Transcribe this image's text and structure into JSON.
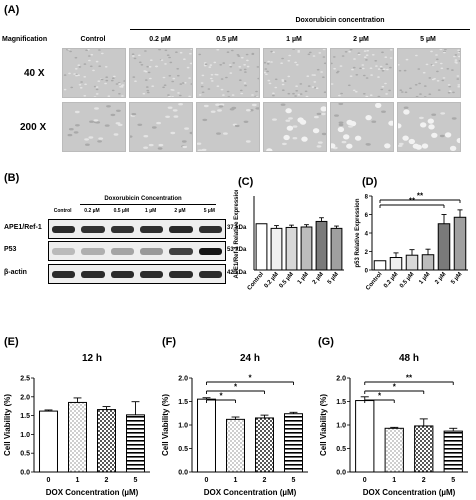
{
  "panelA": {
    "label": "(A)",
    "treatment_header": "Doxorubicin concentration",
    "magnification_label": "Magnification",
    "columns": [
      "Control",
      "0.2 µM",
      "0.5 µM",
      "1 µM",
      "2 µM",
      "5 µM"
    ],
    "rows": [
      "40 X",
      "200 X"
    ]
  },
  "panelB": {
    "label": "(B)",
    "treatment_header": "Doxorubicin Concentration",
    "lanes": [
      "Control",
      "0.2 µM",
      "0.5 µM",
      "1 µM",
      "2 µM",
      "5 µM"
    ],
    "proteins": [
      {
        "name": "APE1/Ref-1",
        "size": "37 kDa",
        "intensity": [
          0.85,
          0.82,
          0.82,
          0.83,
          0.86,
          0.83
        ]
      },
      {
        "name": "P53",
        "size": "53 kDa",
        "intensity": [
          0.2,
          0.25,
          0.3,
          0.35,
          0.75,
          0.95
        ]
      },
      {
        "name": "β-actin",
        "size": "42 kDa",
        "intensity": [
          0.85,
          0.85,
          0.85,
          0.85,
          0.85,
          0.85
        ]
      }
    ]
  },
  "chart_data": [
    {
      "id": "C",
      "label": "(C)",
      "type": "bar",
      "ylabel": "APE1/Ref-1 Relative Expression",
      "categories": [
        "Control",
        "0.2 µM",
        "0.5 µM",
        "1 µM",
        "2 µM",
        "5 µM"
      ],
      "values": [
        1.0,
        0.9,
        0.92,
        0.93,
        1.05,
        0.9
      ],
      "errors": [
        0.0,
        0.06,
        0.05,
        0.05,
        0.08,
        0.05
      ],
      "ylim": [
        0,
        1.6
      ],
      "yticks": []
    },
    {
      "id": "D",
      "label": "(D)",
      "type": "bar",
      "ylabel": "p53 Relative Expression",
      "categories": [
        "Control",
        "0.2 µM",
        "0.5 µM",
        "1 µM",
        "2 µM",
        "5 µM"
      ],
      "values": [
        1.0,
        1.35,
        1.6,
        1.65,
        5.0,
        5.7
      ],
      "errors": [
        0.0,
        0.5,
        0.6,
        0.6,
        1.0,
        0.8
      ],
      "ylim": [
        0,
        8
      ],
      "yticks": [
        "0",
        "2",
        "4",
        "6",
        "8"
      ],
      "significance": [
        {
          "from": 0,
          "to": 5,
          "text": "**"
        },
        {
          "from": 0,
          "to": 4,
          "text": "**"
        }
      ]
    },
    {
      "id": "E",
      "label": "(E)",
      "type": "bar",
      "title": "12 h",
      "xlabel": "DOX Concentration (µM)",
      "ylabel": "Cell Viability (%)",
      "categories": [
        "0",
        "1",
        "2",
        "5"
      ],
      "values": [
        1.62,
        1.85,
        1.66,
        1.52
      ],
      "errors": [
        0.03,
        0.12,
        0.08,
        0.35
      ],
      "ylim": [
        0,
        2.5
      ],
      "yticks": [
        "0.0",
        "0.5",
        "1.0",
        "1.5",
        "2.0",
        "2.5"
      ],
      "significance": []
    },
    {
      "id": "F",
      "label": "(F)",
      "type": "bar",
      "title": "24 h",
      "xlabel": "DOX Concentration (µM)",
      "ylabel": "Cell Viability (%)",
      "categories": [
        "0",
        "1",
        "2",
        "5"
      ],
      "values": [
        1.55,
        1.12,
        1.15,
        1.24
      ],
      "errors": [
        0.03,
        0.05,
        0.06,
        0.03
      ],
      "ylim": [
        0,
        2.0
      ],
      "yticks": [
        "0.0",
        "0.5",
        "1.0",
        "1.5",
        "2.0"
      ],
      "significance": [
        {
          "from": 0,
          "to": 3,
          "text": "*"
        },
        {
          "from": 0,
          "to": 2,
          "text": "*"
        },
        {
          "from": 0,
          "to": 1,
          "text": "*"
        }
      ]
    },
    {
      "id": "G",
      "label": "(G)",
      "type": "bar",
      "title": "48 h",
      "xlabel": "DOX Concentration (µM)",
      "ylabel": "Cell Viability (%)",
      "categories": [
        "0",
        "1",
        "2",
        "5"
      ],
      "values": [
        1.52,
        0.93,
        0.98,
        0.87
      ],
      "errors": [
        0.08,
        0.02,
        0.15,
        0.06
      ],
      "ylim": [
        0,
        2.0
      ],
      "yticks": [
        "0.0",
        "0.5",
        "1.0",
        "1.5",
        "2.0"
      ],
      "significance": [
        {
          "from": 0,
          "to": 3,
          "text": "**"
        },
        {
          "from": 0,
          "to": 2,
          "text": "*"
        },
        {
          "from": 0,
          "to": 1,
          "text": "*"
        }
      ]
    }
  ]
}
